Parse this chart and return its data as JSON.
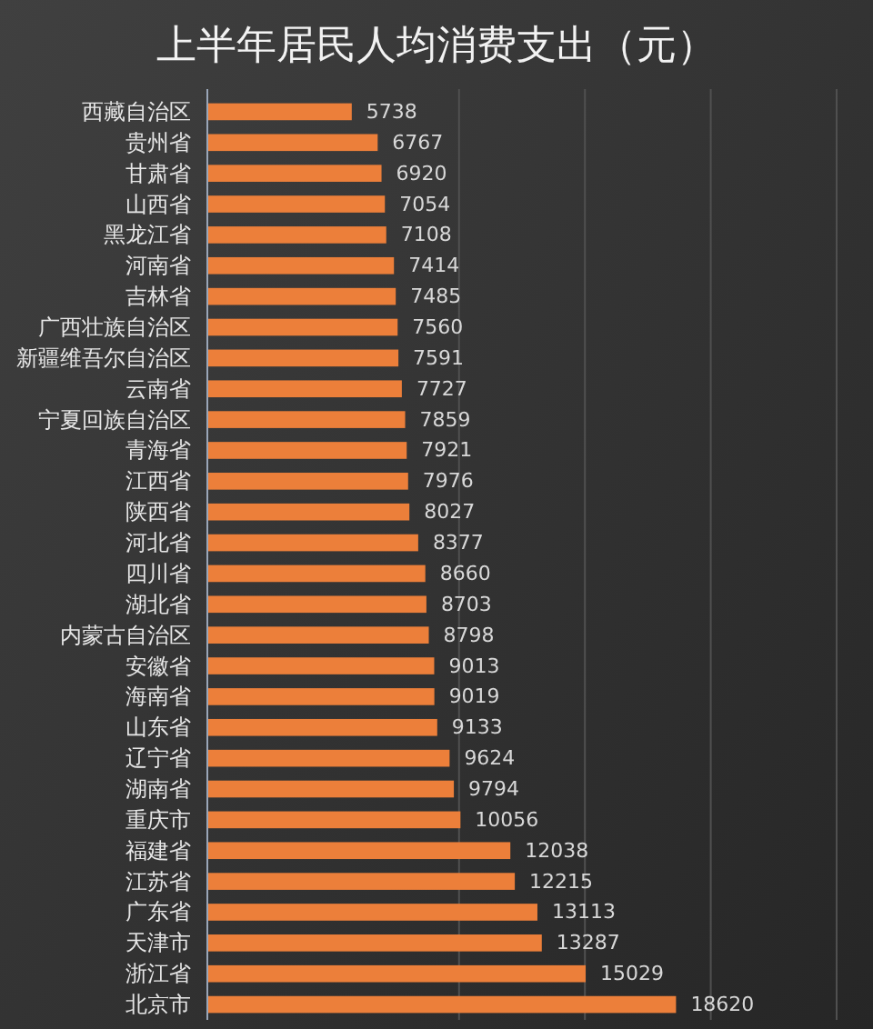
{
  "chart_data": {
    "type": "bar",
    "orientation": "horizontal",
    "title": "上半年居民人均消费支出（元）",
    "categories": [
      "西藏自治区",
      "贵州省",
      "甘肃省",
      "山西省",
      "黑龙江省",
      "河南省",
      "吉林省",
      "广西壮族自治区",
      "新疆维吾尔自治区",
      "云南省",
      "宁夏回族自治区",
      "青海省",
      "江西省",
      "陕西省",
      "河北省",
      "四川省",
      "湖北省",
      "内蒙古自治区",
      "安徽省",
      "海南省",
      "山东省",
      "辽宁省",
      "湖南省",
      "重庆市",
      "福建省",
      "江苏省",
      "广东省",
      "天津市",
      "浙江省",
      "北京市"
    ],
    "values": [
      5738,
      6767,
      6920,
      7054,
      7108,
      7414,
      7485,
      7560,
      7591,
      7727,
      7859,
      7921,
      7976,
      8027,
      8377,
      8660,
      8703,
      8798,
      9013,
      9019,
      9133,
      9624,
      9794,
      10056,
      12038,
      12215,
      13113,
      13287,
      15029,
      18620
    ],
    "color": "#ec7f3a",
    "data_labels": true,
    "xlim": [
      0,
      25000
    ],
    "xticks": [
      {
        "value": 10000,
        "label": null
      },
      {
        "value": 15000,
        "label": null
      },
      {
        "value": 20000,
        "label": null
      },
      {
        "value": 25000,
        "label": null
      }
    ],
    "grid": "x",
    "tick_labels": "y"
  }
}
